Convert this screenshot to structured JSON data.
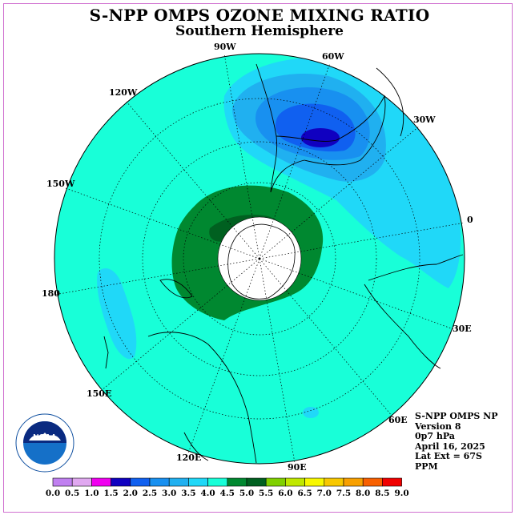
{
  "title": "S-NPP OMPS OZONE MIXING RATIO",
  "subtitle": "Southern Hemisphere",
  "longitude_labels": [
    "90W",
    "60W",
    "30W",
    "0",
    "30E",
    "60E",
    "90E",
    "120E",
    "150E",
    "180",
    "150W",
    "120W"
  ],
  "info": {
    "line1": "S-NPP OMPS NP",
    "line2": "Version 8",
    "line3": "0p7 hPa",
    "line4": "April 16, 2025",
    "line5": "Lat Ext = 67S",
    "line6": "PPM"
  },
  "colorbar": {
    "ticks": [
      "0.0",
      "0.5",
      "1.0",
      "1.5",
      "2.0",
      "2.5",
      "3.0",
      "3.5",
      "4.0",
      "4.5",
      "5.0",
      "5.5",
      "6.0",
      "6.5",
      "7.0",
      "7.5",
      "8.0",
      "8.5",
      "9.0"
    ],
    "colors": [
      "#c080f0",
      "#e0a8f0",
      "#f000f0",
      "#1000c0",
      "#1060f0",
      "#1890f0",
      "#20b0f0",
      "#20d8f8",
      "#18ffd8",
      "#008830",
      "#006020",
      "#80d000",
      "#c0e800",
      "#f8f800",
      "#f8c800",
      "#f8a000",
      "#f86000",
      "#f00000",
      "#806040"
    ]
  },
  "logo": {
    "text": "NOAA"
  },
  "colors": {
    "background_field": "#18ffd8",
    "pole_hole": "#ffffff",
    "coast": "#000000"
  }
}
